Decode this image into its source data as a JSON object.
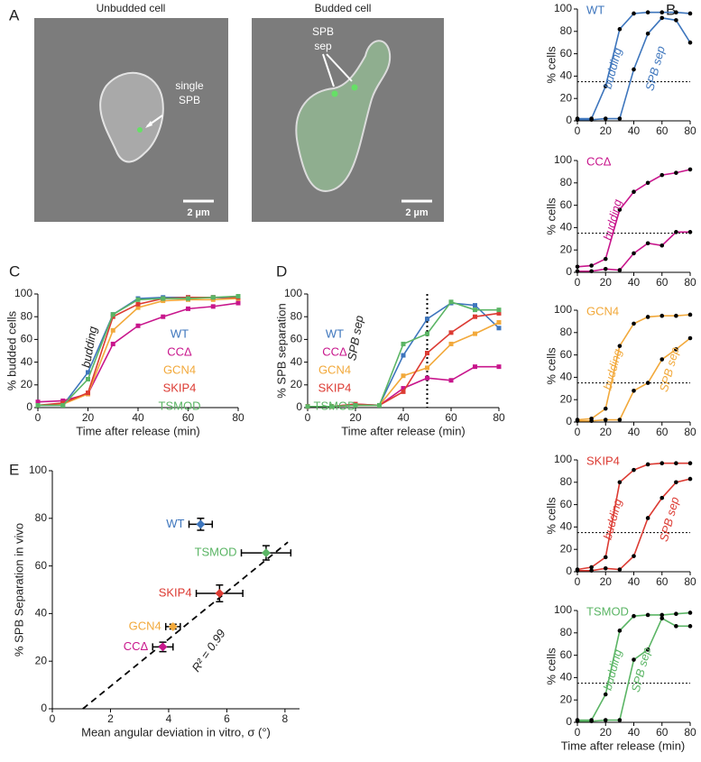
{
  "panel_labels": [
    "A",
    "B",
    "C",
    "D",
    "E"
  ],
  "panel_a": {
    "images": [
      {
        "title": "Unbudded cell",
        "annotation": [
          "single",
          "SPB"
        ],
        "scale_bar": "2 µm"
      },
      {
        "title": "Budded cell",
        "annotation": [
          "SPB",
          "sep"
        ],
        "scale_bar": "2 µm"
      }
    ]
  },
  "chart_data": [
    {
      "type": "line",
      "xlabel": "Time after release (min)",
      "ylabel": "% budded cells",
      "annotation": "budding",
      "legend": true,
      "x": [
        0,
        10,
        20,
        30,
        40,
        50,
        60,
        70,
        80
      ],
      "xlim": [
        0,
        80
      ],
      "xticks": [
        0,
        20,
        40,
        60,
        80
      ],
      "ylim": [
        0,
        100
      ],
      "yticks": [
        0,
        20,
        40,
        60,
        80,
        100
      ],
      "series": [
        {
          "name": "WT",
          "color": "#3e76bd",
          "values": [
            2,
            2,
            31,
            82,
            96,
            97,
            97,
            97,
            96
          ]
        },
        {
          "name": "CCΔ",
          "color": "#c8168c",
          "values": [
            5,
            6,
            12,
            56,
            72,
            80,
            87,
            89,
            92
          ]
        },
        {
          "name": "GCN4",
          "color": "#f2a93b",
          "values": [
            2,
            3,
            12,
            68,
            88,
            94,
            95,
            95,
            96
          ]
        },
        {
          "name": "SKIP4",
          "color": "#dc3b33",
          "values": [
            2,
            4,
            13,
            80,
            91,
            96,
            97,
            97,
            97
          ]
        },
        {
          "name": "TSMOD",
          "color": "#5bb565",
          "values": [
            2,
            2,
            25,
            82,
            95,
            96,
            96,
            97,
            98
          ]
        }
      ]
    },
    {
      "type": "line",
      "xlabel": "Time after release (min)",
      "ylabel": "% SPB separation",
      "annotation": "SPB sep",
      "legend": true,
      "vline": 50,
      "x": [
        0,
        10,
        20,
        30,
        40,
        50,
        60,
        70,
        80
      ],
      "xlim": [
        0,
        80
      ],
      "xticks": [
        0,
        20,
        40,
        60,
        80
      ],
      "ylim": [
        0,
        100
      ],
      "yticks": [
        0,
        20,
        40,
        60,
        80,
        100
      ],
      "series": [
        {
          "name": "WT",
          "color": "#3e76bd",
          "values": [
            1,
            1,
            2,
            2,
            46,
            78,
            92,
            90,
            70
          ]
        },
        {
          "name": "CCΔ",
          "color": "#c8168c",
          "values": [
            1,
            1,
            3,
            2,
            17,
            26,
            24,
            36,
            36
          ]
        },
        {
          "name": "GCN4",
          "color": "#f2a93b",
          "values": [
            1,
            1,
            2,
            2,
            28,
            35,
            56,
            65,
            75
          ]
        },
        {
          "name": "SKIP4",
          "color": "#dc3b33",
          "values": [
            1,
            1,
            3,
            2,
            14,
            48,
            66,
            80,
            83
          ]
        },
        {
          "name": "TSMOD",
          "color": "#5bb565",
          "values": [
            1,
            1,
            2,
            2,
            56,
            65,
            93,
            86,
            86
          ]
        }
      ]
    },
    {
      "type": "scatter",
      "xlabel": "Mean angular deviation in vitro, σ (°)",
      "ylabel": "% SPB Separation in vivo",
      "annotation": "R² = 0.99",
      "xlim": [
        0,
        8.5
      ],
      "xticks": [
        0,
        2,
        4,
        6,
        8
      ],
      "ylim": [
        0,
        100
      ],
      "yticks": [
        0,
        20,
        40,
        60,
        80,
        100
      ],
      "fit": {
        "x": [
          1.05,
          8.1
        ],
        "y": [
          0,
          70
        ]
      },
      "series": [
        {
          "name": "WT",
          "color": "#3e76bd",
          "x": [
            5.1
          ],
          "y": [
            77.5
          ],
          "xerr": [
            0.4
          ],
          "yerr": [
            2.5
          ]
        },
        {
          "name": "TSMOD",
          "color": "#5bb565",
          "x": [
            7.35
          ],
          "y": [
            65.5
          ],
          "xerr": [
            0.85
          ],
          "yerr": [
            3
          ]
        },
        {
          "name": "SKIP4",
          "color": "#dc3b33",
          "x": [
            5.75
          ],
          "y": [
            48.5
          ],
          "xerr": [
            0.8
          ],
          "yerr": [
            3.5
          ]
        },
        {
          "name": "GCN4",
          "color": "#f2a93b",
          "x": [
            4.15
          ],
          "y": [
            34.5
          ],
          "xerr": [
            0.25
          ],
          "yerr": [
            1
          ]
        },
        {
          "name": "CCΔ",
          "color": "#c8168c",
          "x": [
            3.8
          ],
          "y": [
            26
          ],
          "xerr": [
            0.35
          ],
          "yerr": [
            2
          ]
        }
      ]
    },
    {
      "type": "line",
      "title": "WT",
      "ylabel": "% cells",
      "hline": 35,
      "marker_color": "#000000",
      "x": [
        0,
        10,
        20,
        30,
        40,
        50,
        60,
        70,
        80
      ],
      "xlim": [
        0,
        80
      ],
      "xticks": [
        0,
        20,
        40,
        60,
        80
      ],
      "ylim": [
        0,
        100
      ],
      "yticks": [
        0,
        20,
        40,
        60,
        80,
        100
      ],
      "series": [
        {
          "name": "budding",
          "color": "#3e76bd",
          "values": [
            2,
            2,
            31,
            82,
            96,
            97,
            97,
            97,
            96
          ]
        },
        {
          "name": "SPB sep",
          "color": "#3e76bd",
          "values": [
            1,
            1,
            2,
            2,
            46,
            78,
            92,
            90,
            70
          ]
        }
      ]
    },
    {
      "type": "line",
      "title": "CCΔ",
      "ylabel": "% cells",
      "hline": 35,
      "marker_color": "#000000",
      "x": [
        0,
        10,
        20,
        30,
        40,
        50,
        60,
        70,
        80
      ],
      "xlim": [
        0,
        80
      ],
      "xticks": [
        0,
        20,
        40,
        60,
        80
      ],
      "ylim": [
        0,
        100
      ],
      "yticks": [
        0,
        20,
        40,
        60,
        80,
        100
      ],
      "series": [
        {
          "name": "budding",
          "color": "#c8168c",
          "values": [
            5,
            6,
            12,
            56,
            72,
            80,
            87,
            89,
            92
          ]
        },
        {
          "name": "SPB sep",
          "color": "#c8168c",
          "values": [
            1,
            1,
            3,
            2,
            17,
            26,
            24,
            36,
            36
          ]
        }
      ]
    },
    {
      "type": "line",
      "title": "GCN4",
      "ylabel": "% cells",
      "hline": 35,
      "marker_color": "#000000",
      "x": [
        0,
        10,
        20,
        30,
        40,
        50,
        60,
        70,
        80
      ],
      "xlim": [
        0,
        80
      ],
      "xticks": [
        0,
        20,
        40,
        60,
        80
      ],
      "ylim": [
        0,
        100
      ],
      "yticks": [
        0,
        20,
        40,
        60,
        80,
        100
      ],
      "series": [
        {
          "name": "budding",
          "color": "#f2a93b",
          "values": [
            2,
            3,
            12,
            68,
            88,
            94,
            95,
            95,
            96
          ]
        },
        {
          "name": "SPB sep",
          "color": "#f2a93b",
          "values": [
            1,
            1,
            2,
            2,
            28,
            35,
            56,
            65,
            75
          ]
        }
      ]
    },
    {
      "type": "line",
      "title": "SKIP4",
      "ylabel": "% cells",
      "hline": 35,
      "marker_color": "#000000",
      "x": [
        0,
        10,
        20,
        30,
        40,
        50,
        60,
        70,
        80
      ],
      "xlim": [
        0,
        80
      ],
      "xticks": [
        0,
        20,
        40,
        60,
        80
      ],
      "ylim": [
        0,
        100
      ],
      "yticks": [
        0,
        20,
        40,
        60,
        80,
        100
      ],
      "series": [
        {
          "name": "budding",
          "color": "#dc3b33",
          "values": [
            2,
            4,
            13,
            80,
            91,
            96,
            97,
            97,
            97
          ]
        },
        {
          "name": "SPB sep",
          "color": "#dc3b33",
          "values": [
            1,
            1,
            3,
            2,
            14,
            48,
            66,
            80,
            83
          ]
        }
      ]
    },
    {
      "type": "line",
      "title": "TSMOD",
      "ylabel": "% cells",
      "xlabel": "Time after release (min)",
      "hline": 35,
      "marker_color": "#000000",
      "x": [
        0,
        10,
        20,
        30,
        40,
        50,
        60,
        70,
        80
      ],
      "xlim": [
        0,
        80
      ],
      "xticks": [
        0,
        20,
        40,
        60,
        80
      ],
      "ylim": [
        0,
        100
      ],
      "yticks": [
        0,
        20,
        40,
        60,
        80,
        100
      ],
      "series": [
        {
          "name": "budding",
          "color": "#5bb565",
          "values": [
            2,
            2,
            25,
            82,
            95,
            96,
            96,
            97,
            98
          ]
        },
        {
          "name": "SPB sep",
          "color": "#5bb565",
          "values": [
            1,
            1,
            2,
            2,
            56,
            65,
            93,
            86,
            86
          ]
        }
      ]
    }
  ]
}
